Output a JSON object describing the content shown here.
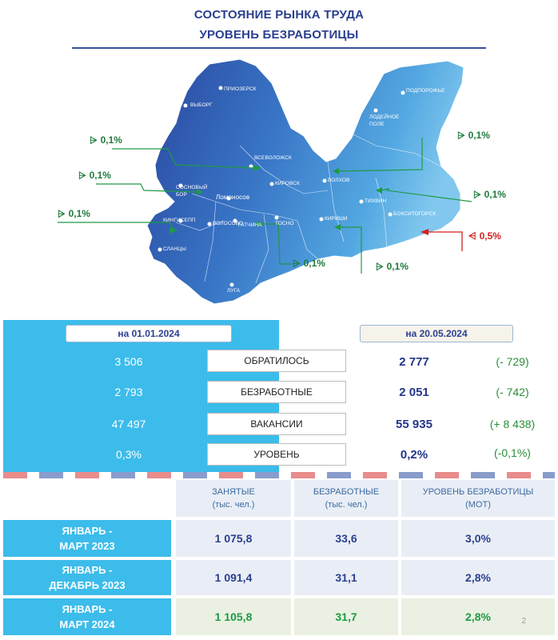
{
  "header": {
    "title_line1": "СОСТОЯНИЕ РЫНКА ТРУДА",
    "title_line2": "УРОВЕНЬ БЕЗРАБОТИЦЫ"
  },
  "map": {
    "cities": [
      "ПОДПОРОЖЬЕ",
      "ЛОДЕЙНОЕ ПОЛЕ",
      "ВЫБОРГ",
      "ПРИОЗЕРСК",
      "ВСЕВОЛОЖСК",
      "СОСНОВЫЙ БОР",
      "КИРОВСК",
      "ВОЛХОВ",
      "ТИХВИН",
      "БОКСИТОГОРСК",
      "КИНГИСЕПП",
      "ВОЛОСОВО",
      "ГАТЧИНА",
      "ТОСНО",
      "КИРИШИ",
      "СЛАНЦЫ",
      "ЛУГА",
      "Ломоносов"
    ],
    "deltas": [
      {
        "text": "0,1%",
        "color": "green"
      },
      {
        "text": "0,1%",
        "color": "green"
      },
      {
        "text": "0,1%",
        "color": "green"
      },
      {
        "text": "0,1%",
        "color": "green"
      },
      {
        "text": "0,1%",
        "color": "green"
      },
      {
        "text": "0,1%",
        "color": "green"
      },
      {
        "text": "0,1%",
        "color": "green"
      },
      {
        "text": "0,5%",
        "color": "red"
      }
    ]
  },
  "stats": {
    "date_left": "на 01.01.2024",
    "date_right": "на 20.05.2024",
    "rows": [
      {
        "left": "3 506",
        "label": "ОБРАТИЛОСЬ",
        "right": "2 777",
        "diff": "(- 729)"
      },
      {
        "left": "2 793",
        "label": "БЕЗРАБОТНЫЕ",
        "right": "2 051",
        "diff": "(- 742)"
      },
      {
        "left": "47 497",
        "label": "ВАКАНСИИ",
        "right": "55 935",
        "diff": "(+ 8 438)"
      },
      {
        "left": "0,3%",
        "label": "УРОВЕНЬ",
        "right": "0,2%",
        "diff": "(-0,1%)"
      }
    ]
  },
  "table": {
    "headers": [
      {
        "l1": "ЗАНЯТЫЕ",
        "l2": "(тыс. чел.)"
      },
      {
        "l1": "БЕЗРАБОТНЫЕ",
        "l2": "(тыс. чел.)"
      },
      {
        "l1": "УРОВЕНЬ БЕЗРАБОТИЦЫ",
        "l2": "(МОТ)"
      }
    ],
    "rows": [
      {
        "l1": "ЯНВАРЬ -",
        "l2": "МАРТ 2023",
        "c1": "1 075,8",
        "c2": "33,6",
        "c3": "3,0%"
      },
      {
        "l1": "ЯНВАРЬ -",
        "l2": "ДЕКАБРЬ 2023",
        "c1": "1 091,4",
        "c2": "31,1",
        "c3": "2,8%"
      },
      {
        "l1": "ЯНВАРЬ -",
        "l2": "МАРТ 2024",
        "c1": "1 105,8",
        "c2": "31,7",
        "c3": "2,8%"
      }
    ]
  },
  "page_number": "2"
}
